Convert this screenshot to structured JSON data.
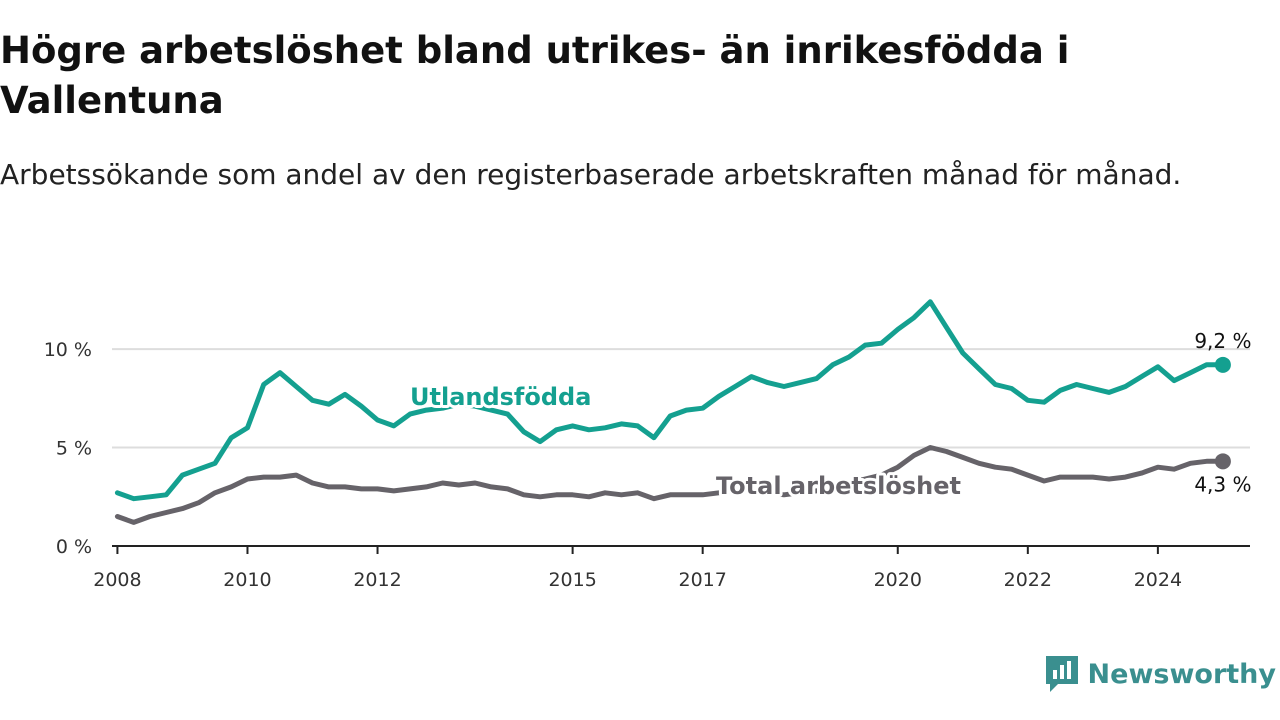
{
  "title": "Högre arbetslöshet bland utrikes- än inrikesfödda i Vallentuna",
  "subtitle": "Arbetssökande som andel av den registerbaserade arbetskraften månad för månad.",
  "brand": {
    "name": "Newsworthy",
    "icon": "newsworthy-logo-icon"
  },
  "colors": {
    "utlandsfodda": "#14a090",
    "total": "#666369",
    "grid": "#dddddd",
    "axis": "#222222",
    "brand": "#3a8f8f"
  },
  "chart_data": {
    "type": "line",
    "x_ticks": [
      "2008",
      "2010",
      "2012",
      "2015",
      "2017",
      "2020",
      "2022",
      "2024"
    ],
    "y_ticks": [
      "0 %",
      "5 %",
      "10 %"
    ],
    "ylim": [
      0,
      13
    ],
    "xlim": [
      "2007-12",
      "2025-06"
    ],
    "grid": "horizontal",
    "series": [
      {
        "name": "Utlandsfödda",
        "color": "#14a090",
        "end_label": "9,2 %",
        "points": [
          [
            "2008-01",
            2.7
          ],
          [
            "2008-04",
            2.4
          ],
          [
            "2008-07",
            2.5
          ],
          [
            "2008-10",
            2.6
          ],
          [
            "2009-01",
            3.6
          ],
          [
            "2009-04",
            3.9
          ],
          [
            "2009-07",
            4.2
          ],
          [
            "2009-10",
            5.5
          ],
          [
            "2010-01",
            6.0
          ],
          [
            "2010-04",
            8.2
          ],
          [
            "2010-07",
            8.8
          ],
          [
            "2010-10",
            8.1
          ],
          [
            "2011-01",
            7.4
          ],
          [
            "2011-04",
            7.2
          ],
          [
            "2011-07",
            7.7
          ],
          [
            "2011-10",
            7.1
          ],
          [
            "2012-01",
            6.4
          ],
          [
            "2012-04",
            6.1
          ],
          [
            "2012-07",
            6.7
          ],
          [
            "2012-10",
            6.9
          ],
          [
            "2013-01",
            7.0
          ],
          [
            "2013-04",
            7.2
          ],
          [
            "2013-07",
            7.1
          ],
          [
            "2013-10",
            6.9
          ],
          [
            "2014-01",
            6.7
          ],
          [
            "2014-04",
            5.8
          ],
          [
            "2014-07",
            5.3
          ],
          [
            "2014-10",
            5.9
          ],
          [
            "2015-01",
            6.1
          ],
          [
            "2015-04",
            5.9
          ],
          [
            "2015-07",
            6.0
          ],
          [
            "2015-10",
            6.2
          ],
          [
            "2016-01",
            6.1
          ],
          [
            "2016-04",
            5.5
          ],
          [
            "2016-07",
            6.6
          ],
          [
            "2016-10",
            6.9
          ],
          [
            "2017-01",
            7.0
          ],
          [
            "2017-04",
            7.6
          ],
          [
            "2017-07",
            8.1
          ],
          [
            "2017-10",
            8.6
          ],
          [
            "2018-01",
            8.3
          ],
          [
            "2018-04",
            8.1
          ],
          [
            "2018-07",
            8.3
          ],
          [
            "2018-10",
            8.5
          ],
          [
            "2019-01",
            9.2
          ],
          [
            "2019-04",
            9.6
          ],
          [
            "2019-07",
            10.2
          ],
          [
            "2019-10",
            10.3
          ],
          [
            "2020-01",
            11.0
          ],
          [
            "2020-04",
            11.6
          ],
          [
            "2020-07",
            12.4
          ],
          [
            "2020-10",
            11.1
          ],
          [
            "2021-01",
            9.8
          ],
          [
            "2021-04",
            9.0
          ],
          [
            "2021-07",
            8.2
          ],
          [
            "2021-10",
            8.0
          ],
          [
            "2022-01",
            7.4
          ],
          [
            "2022-04",
            7.3
          ],
          [
            "2022-07",
            7.9
          ],
          [
            "2022-10",
            8.2
          ],
          [
            "2023-01",
            8.0
          ],
          [
            "2023-04",
            7.8
          ],
          [
            "2023-07",
            8.1
          ],
          [
            "2023-10",
            8.6
          ],
          [
            "2024-01",
            9.1
          ],
          [
            "2024-04",
            8.4
          ],
          [
            "2024-07",
            8.8
          ],
          [
            "2024-10",
            9.2
          ],
          [
            "2025-01",
            9.2
          ]
        ]
      },
      {
        "name": "Total arbetslöshet",
        "color": "#666369",
        "end_label": "4,3 %",
        "points": [
          [
            "2008-01",
            1.5
          ],
          [
            "2008-04",
            1.2
          ],
          [
            "2008-07",
            1.5
          ],
          [
            "2008-10",
            1.7
          ],
          [
            "2009-01",
            1.9
          ],
          [
            "2009-04",
            2.2
          ],
          [
            "2009-07",
            2.7
          ],
          [
            "2009-10",
            3.0
          ],
          [
            "2010-01",
            3.4
          ],
          [
            "2010-04",
            3.5
          ],
          [
            "2010-07",
            3.5
          ],
          [
            "2010-10",
            3.6
          ],
          [
            "2011-01",
            3.2
          ],
          [
            "2011-04",
            3.0
          ],
          [
            "2011-07",
            3.0
          ],
          [
            "2011-10",
            2.9
          ],
          [
            "2012-01",
            2.9
          ],
          [
            "2012-04",
            2.8
          ],
          [
            "2012-07",
            2.9
          ],
          [
            "2012-10",
            3.0
          ],
          [
            "2013-01",
            3.2
          ],
          [
            "2013-04",
            3.1
          ],
          [
            "2013-07",
            3.2
          ],
          [
            "2013-10",
            3.0
          ],
          [
            "2014-01",
            2.9
          ],
          [
            "2014-04",
            2.6
          ],
          [
            "2014-07",
            2.5
          ],
          [
            "2014-10",
            2.6
          ],
          [
            "2015-01",
            2.6
          ],
          [
            "2015-04",
            2.5
          ],
          [
            "2015-07",
            2.7
          ],
          [
            "2015-10",
            2.6
          ],
          [
            "2016-01",
            2.7
          ],
          [
            "2016-04",
            2.4
          ],
          [
            "2016-07",
            2.6
          ],
          [
            "2016-10",
            2.6
          ],
          [
            "2017-01",
            2.6
          ],
          [
            "2017-04",
            2.7
          ],
          [
            "2017-07",
            2.8
          ],
          [
            "2017-10",
            2.8
          ],
          [
            "2018-01",
            2.7
          ],
          [
            "2018-04",
            2.6
          ],
          [
            "2018-07",
            2.7
          ],
          [
            "2018-10",
            2.8
          ],
          [
            "2019-01",
            3.0
          ],
          [
            "2019-04",
            3.2
          ],
          [
            "2019-07",
            3.4
          ],
          [
            "2019-10",
            3.6
          ],
          [
            "2020-01",
            4.0
          ],
          [
            "2020-04",
            4.6
          ],
          [
            "2020-07",
            5.0
          ],
          [
            "2020-10",
            4.8
          ],
          [
            "2021-01",
            4.5
          ],
          [
            "2021-04",
            4.2
          ],
          [
            "2021-07",
            4.0
          ],
          [
            "2021-10",
            3.9
          ],
          [
            "2022-01",
            3.6
          ],
          [
            "2022-04",
            3.3
          ],
          [
            "2022-07",
            3.5
          ],
          [
            "2022-10",
            3.5
          ],
          [
            "2023-01",
            3.5
          ],
          [
            "2023-04",
            3.4
          ],
          [
            "2023-07",
            3.5
          ],
          [
            "2023-10",
            3.7
          ],
          [
            "2024-01",
            4.0
          ],
          [
            "2024-04",
            3.9
          ],
          [
            "2024-07",
            4.2
          ],
          [
            "2024-10",
            4.3
          ],
          [
            "2025-01",
            4.3
          ]
        ]
      }
    ]
  }
}
